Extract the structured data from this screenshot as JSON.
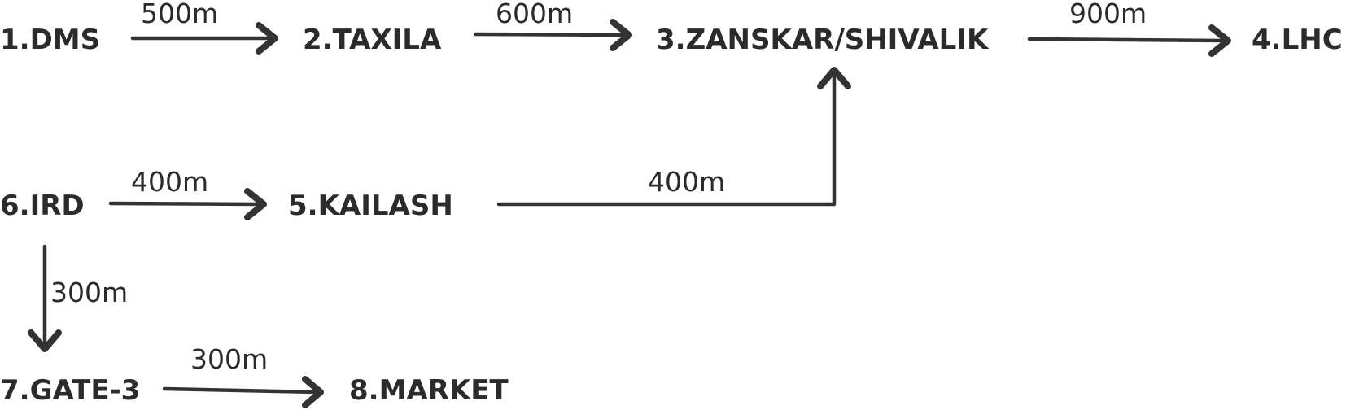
{
  "nodes": {
    "dms": "1.DMS",
    "taxila": "2.TAXILA",
    "zanskar": "3.ZANSKAR/SHIVALIK",
    "lhc": "4.LHC",
    "kailash": "5.KAILASH",
    "ird": "6.IRD",
    "gate3": "7.GATE-3",
    "market": "8.MARKET"
  },
  "edges": {
    "dms_taxila": "500m",
    "taxila_zanskar": "600m",
    "zanskar_lhc": "900m",
    "ird_kailash": "400m",
    "kailash_zanskar": "400m",
    "ird_gate3": "300m",
    "gate3_market": "300m"
  }
}
